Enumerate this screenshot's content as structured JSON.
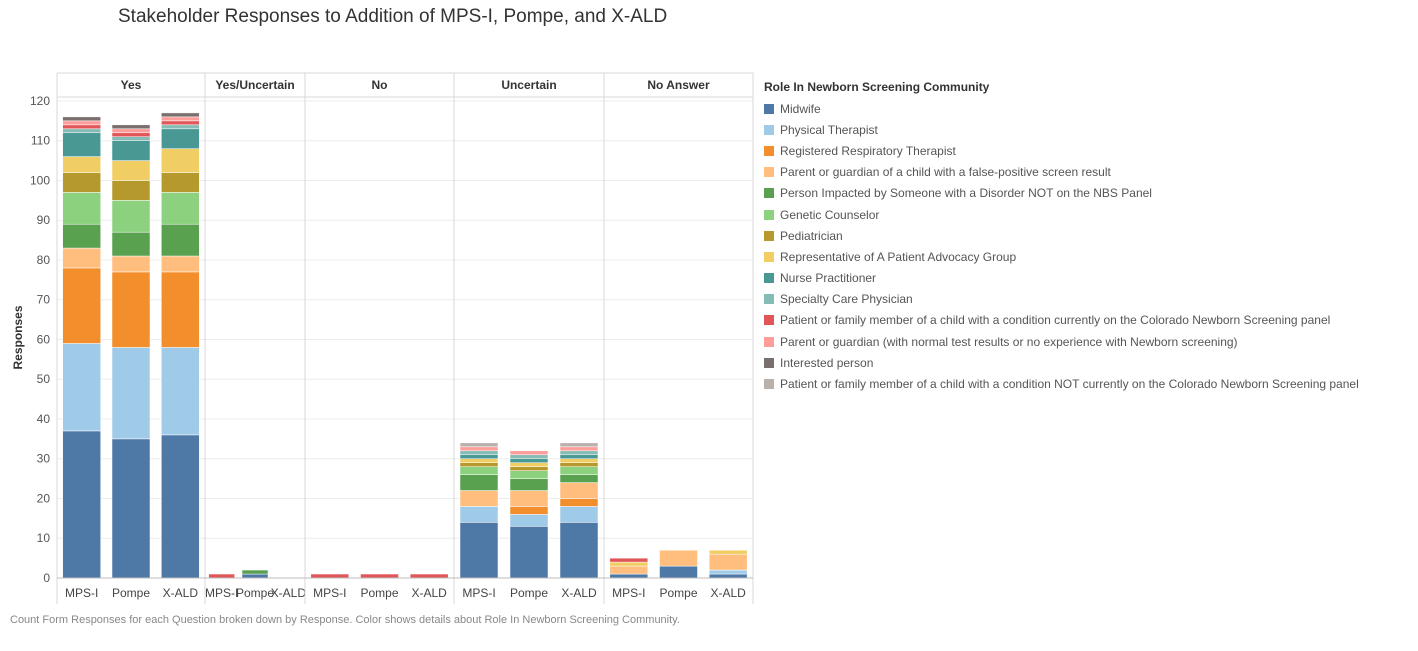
{
  "chart_data": {
    "type": "bar",
    "stacked": true,
    "title": "Stakeholder Responses to Addition of MPS-I, Pompe, and X-ALD",
    "ylabel": "Responses",
    "ylim": [
      0,
      121
    ],
    "yticks": [
      0,
      10,
      20,
      30,
      40,
      50,
      60,
      70,
      80,
      90,
      100,
      110,
      120
    ],
    "legend_title": "Role In Newborn Screening Community",
    "legend_position": "right",
    "caption": "Count Form Responses for each Question broken down by Response.  Color shows details about Role In Newborn Screening Community.",
    "panels": [
      "Yes",
      "Yes/Uncertain",
      "No",
      "Uncertain",
      "No Answer"
    ],
    "categories": [
      "MPS-I",
      "Pompe",
      "X-ALD"
    ],
    "roles": [
      {
        "name": "Midwife",
        "color": "#4e79a7"
      },
      {
        "name": "Physical Therapist",
        "color": "#a0cbe8"
      },
      {
        "name": "Registered Respiratory Therapist",
        "color": "#f28e2b"
      },
      {
        "name": "Parent or guardian of a child with a false-positive screen result",
        "color": "#ffbe7d"
      },
      {
        "name": "Person Impacted by Someone with a Disorder NOT on the NBS Panel",
        "color": "#59a14f"
      },
      {
        "name": "Genetic Counselor",
        "color": "#8cd17d"
      },
      {
        "name": "Pediatrician",
        "color": "#b6992d"
      },
      {
        "name": "Representative of A Patient Advocacy Group",
        "color": "#f1ce63"
      },
      {
        "name": "Nurse Practitioner",
        "color": "#499894"
      },
      {
        "name": "Specialty Care Physician",
        "color": "#86bcb6"
      },
      {
        "name": "Patient or family member of a child with a condition currently on the Colorado Newborn Screening panel",
        "color": "#e15759"
      },
      {
        "name": "Parent or guardian (with normal test results or no experience with Newborn screening)",
        "color": "#ff9d9a"
      },
      {
        "name": "Interested person",
        "color": "#79706e"
      },
      {
        "name": "Patient or family member of a child with a condition NOT currently on the Colorado Newborn Screening panel",
        "color": "#bab0ac"
      }
    ],
    "data": [
      [
        [
          37,
          22,
          19,
          5,
          6,
          8,
          5,
          4,
          6,
          1,
          1,
          1,
          1,
          0
        ],
        [
          35,
          23,
          19,
          4,
          6,
          8,
          5,
          5,
          5,
          1,
          1,
          1,
          1,
          0
        ],
        [
          36,
          22,
          19,
          4,
          8,
          8,
          5,
          6,
          5,
          1,
          1,
          1,
          1,
          0
        ]
      ],
      [
        [
          0,
          0,
          0,
          0,
          0,
          0,
          0,
          0,
          0,
          0,
          1,
          0,
          0,
          0
        ],
        [
          1,
          0,
          0,
          0,
          1,
          0,
          0,
          0,
          0,
          0,
          0,
          0,
          0,
          0
        ],
        [
          0,
          0,
          0,
          0,
          0,
          0,
          0,
          0,
          0,
          0,
          0,
          0,
          0,
          0
        ]
      ],
      [
        [
          0,
          0,
          0,
          0,
          0,
          0,
          0,
          0,
          0,
          0,
          1,
          0,
          0,
          0
        ],
        [
          0,
          0,
          0,
          0,
          0,
          0,
          0,
          0,
          0,
          0,
          1,
          0,
          0,
          0
        ],
        [
          0,
          0,
          0,
          0,
          0,
          0,
          0,
          0,
          0,
          0,
          1,
          0,
          0,
          0
        ]
      ],
      [
        [
          14,
          4,
          0,
          4,
          4,
          2,
          1,
          1,
          1,
          1,
          0,
          1,
          0,
          1
        ],
        [
          13,
          3,
          2,
          4,
          3,
          2,
          1,
          1,
          1,
          1,
          0,
          1,
          0,
          0
        ],
        [
          14,
          4,
          2,
          4,
          2,
          2,
          1,
          1,
          1,
          1,
          0,
          1,
          0,
          1
        ]
      ],
      [
        [
          1,
          0,
          0,
          2,
          0,
          0,
          0,
          1,
          0,
          0,
          1,
          0,
          0,
          0
        ],
        [
          3,
          0,
          0,
          4,
          0,
          0,
          0,
          0,
          0,
          0,
          0,
          0,
          0,
          0
        ],
        [
          1,
          1,
          0,
          4,
          0,
          0,
          0,
          1,
          0,
          0,
          0,
          0,
          0,
          0
        ]
      ]
    ]
  }
}
